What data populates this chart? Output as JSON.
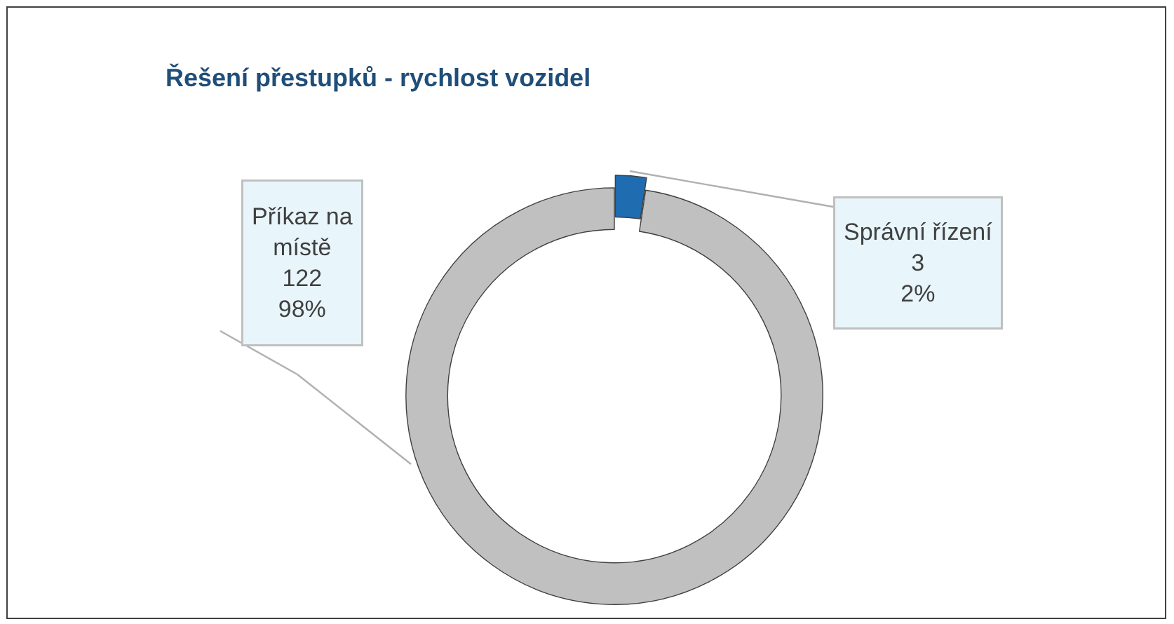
{
  "chart_data": {
    "type": "donut",
    "title": "Řešení přestupků - rychlost vozidel",
    "categories": [
      "Příkaz na místě",
      "Správní řízení"
    ],
    "values": [
      122,
      3
    ],
    "colors": [
      "#c0c0c0",
      "#1f6cb0"
    ],
    "value_labels": [
      "122\n98%",
      "3\n2%"
    ],
    "legend": false
  }
}
